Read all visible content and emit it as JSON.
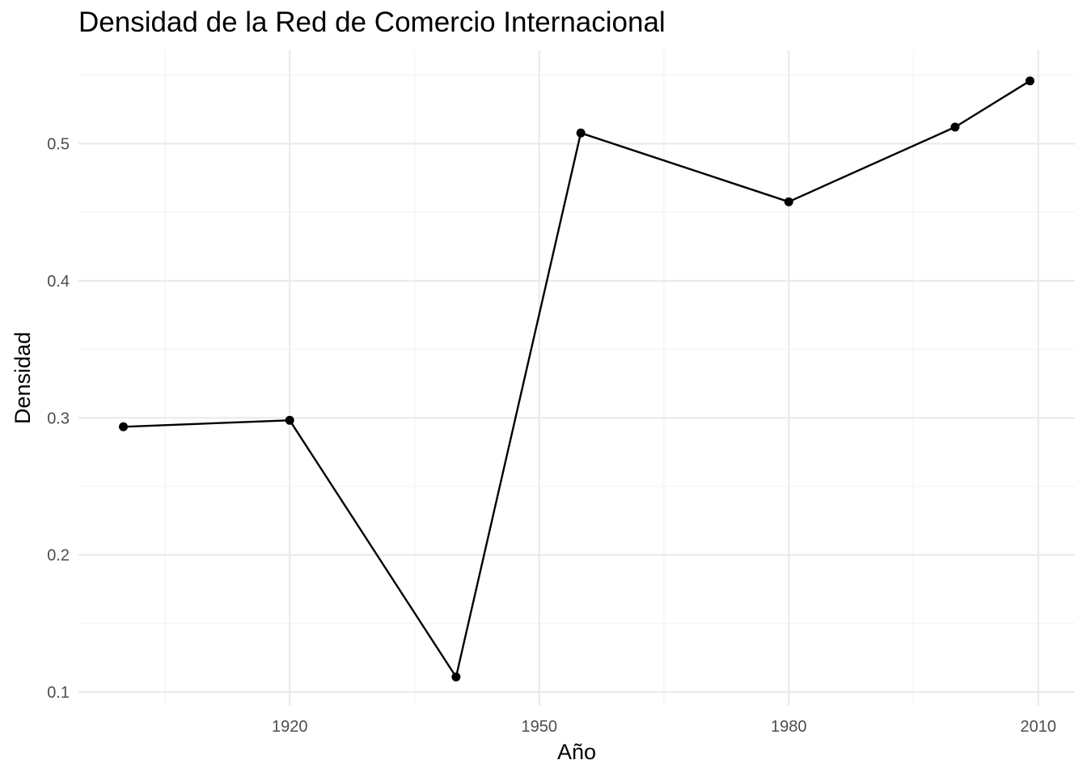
{
  "chart_data": {
    "type": "line",
    "title": "Densidad de la Red de Comercio Internacional",
    "xlabel": "Año",
    "ylabel": "Densidad",
    "x": [
      1900,
      1920,
      1940,
      1955,
      1980,
      2000,
      2009
    ],
    "y": [
      0.2935,
      0.2982,
      0.111,
      0.5078,
      0.4576,
      0.5121,
      0.5458
    ],
    "xlim": [
      1894.6,
      2014.4
    ],
    "ylim": [
      0.1,
      0.5682
    ],
    "x_ticks": [
      1920,
      1950,
      1980,
      2010
    ],
    "x_tick_labels": [
      "1920",
      "1950",
      "1980",
      "2010"
    ],
    "x_minor_ticks": [
      1905,
      1935,
      1965,
      1995
    ],
    "y_ticks": [
      0.1,
      0.2,
      0.3,
      0.4,
      0.5
    ],
    "y_tick_labels": [
      "0.1",
      "0.2",
      "0.3",
      "0.4",
      "0.5"
    ],
    "y_minor_ticks": [
      0.15,
      0.25,
      0.35,
      0.45,
      0.55
    ],
    "grid": true,
    "legend": "none",
    "colors": {
      "line": "#000000",
      "point": "#000000",
      "grid_major": "#ebebeb",
      "grid_minor": "#f2f2f2"
    }
  }
}
